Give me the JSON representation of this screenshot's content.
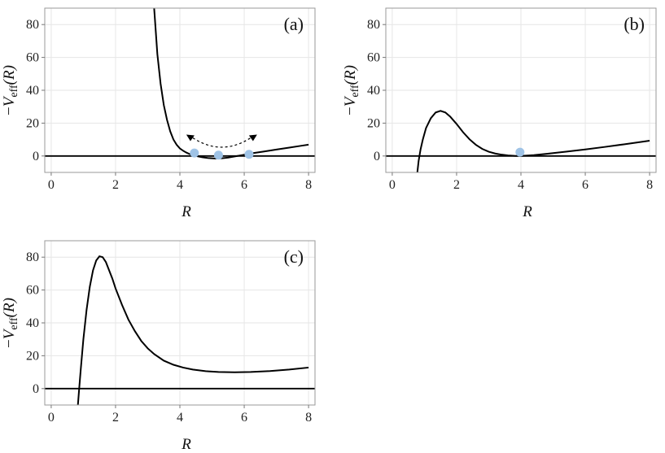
{
  "chart_data": [
    {
      "type": "line",
      "panel_label": "(a)",
      "xlabel": "R",
      "ylabel": "-V_eff(R)",
      "xlim": [
        -0.2,
        8.2
      ],
      "ylim": [
        -10,
        90
      ],
      "xticks": [
        0,
        2,
        4,
        6,
        8
      ],
      "yticks": [
        0,
        20,
        40,
        60,
        80
      ],
      "grid": true,
      "series": [
        {
          "x": [
            3.2,
            3.3,
            3.4,
            3.5,
            3.6,
            3.7,
            3.8,
            3.9,
            4.0,
            4.1,
            4.2,
            4.3,
            4.4,
            4.5,
            4.7,
            4.9,
            5.1,
            5.3,
            5.5,
            5.7,
            5.9,
            6.1,
            6.3,
            6.6,
            7.0,
            7.4,
            7.8,
            8.0
          ],
          "y": [
            90,
            62,
            44,
            31,
            22,
            15,
            10,
            6.8,
            4.6,
            3.2,
            2.1,
            1.2,
            0.5,
            0.0,
            -0.8,
            -1.3,
            -1.5,
            -1.4,
            -1.0,
            -0.3,
            0.4,
            1.1,
            1.8,
            2.7,
            3.9,
            5.1,
            6.3,
            6.9
          ]
        }
      ],
      "points": [
        {
          "x": 4.45,
          "y": 1.8
        },
        {
          "x": 5.2,
          "y": 0.5
        },
        {
          "x": 6.15,
          "y": 1.0
        }
      ],
      "annotations": [
        {
          "type": "dashed-double-arrow",
          "from": [
            4.2,
            13
          ],
          "to": [
            6.4,
            13
          ],
          "via_y": 6
        }
      ]
    },
    {
      "type": "line",
      "panel_label": "(b)",
      "xlabel": "R",
      "ylabel": "-V_eff(R)",
      "xlim": [
        -0.2,
        8.2
      ],
      "ylim": [
        -10,
        90
      ],
      "xticks": [
        0,
        2,
        4,
        6,
        8
      ],
      "yticks": [
        0,
        20,
        40,
        60,
        80
      ],
      "grid": true,
      "series": [
        {
          "x": [
            0.78,
            0.82,
            0.88,
            0.95,
            1.05,
            1.2,
            1.35,
            1.5,
            1.65,
            1.8,
            2.0,
            2.2,
            2.4,
            2.6,
            2.8,
            3.0,
            3.2,
            3.4,
            3.6,
            3.8,
            4.0,
            4.4,
            4.8,
            5.4,
            6.0,
            6.6,
            7.2,
            8.0
          ],
          "y": [
            -10,
            -3,
            4,
            10,
            17,
            23,
            26.5,
            27.5,
            26.5,
            24,
            19.5,
            14.5,
            10.2,
            6.8,
            4.3,
            2.6,
            1.5,
            0.8,
            0.35,
            0.1,
            0.0,
            0.5,
            1.3,
            2.6,
            4.0,
            5.5,
            7.1,
            9.3
          ]
        }
      ],
      "points": [
        {
          "x": 3.97,
          "y": 2.3
        }
      ]
    },
    {
      "type": "line",
      "panel_label": "(c)",
      "xlabel": "R",
      "ylabel": "-V_eff(R)",
      "xlim": [
        -0.2,
        8.2
      ],
      "ylim": [
        -10,
        90
      ],
      "xticks": [
        0,
        2,
        4,
        6,
        8
      ],
      "yticks": [
        0,
        20,
        40,
        60,
        80
      ],
      "grid": true,
      "series": [
        {
          "x": [
            0.83,
            0.87,
            0.92,
            1.0,
            1.1,
            1.2,
            1.3,
            1.4,
            1.5,
            1.6,
            1.7,
            1.8,
            1.9,
            2.0,
            2.2,
            2.4,
            2.6,
            2.8,
            3.0,
            3.2,
            3.5,
            3.8,
            4.1,
            4.4,
            4.8,
            5.2,
            5.7,
            6.2,
            6.8,
            7.4,
            8.0
          ],
          "y": [
            -10,
            0,
            12,
            30,
            48,
            62,
            72,
            78,
            80.5,
            80,
            77,
            72,
            67,
            61,
            51,
            42,
            35,
            29,
            24.5,
            21,
            17,
            14.5,
            12.8,
            11.6,
            10.6,
            10.1,
            9.9,
            10.1,
            10.7,
            11.6,
            12.8
          ]
        }
      ],
      "points": []
    }
  ]
}
